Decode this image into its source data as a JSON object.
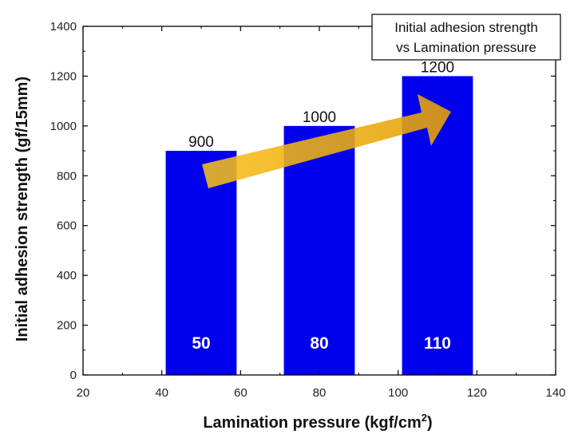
{
  "chart_data": {
    "type": "bar",
    "title": "Initial adhesion strength vs Lamination pressure",
    "title_lines": [
      "Initial adhesion strength",
      "vs Lamination pressure"
    ],
    "xlabel": "Lamination pressure (kgf/cm",
    "xlabel_superscript": "2",
    "xlabel_suffix": ")",
    "ylabel": "Initial adhesion strength (gf/15mm)",
    "x": [
      50,
      80,
      110
    ],
    "values": [
      900,
      1000,
      1200
    ],
    "bar_labels": [
      "900",
      "1000",
      "1200"
    ],
    "category_labels": [
      "50",
      "80",
      "110"
    ],
    "bar_width_units": 18,
    "xlim": [
      20,
      140
    ],
    "ylim": [
      0,
      1400
    ],
    "xticks": [
      20,
      40,
      60,
      80,
      100,
      120,
      140
    ],
    "yticks": [
      0,
      200,
      400,
      600,
      800,
      1000,
      1200,
      1400
    ],
    "bar_color": "#0000ee",
    "arrow_color": "#f5b800",
    "annotation": "arrow indicating increasing trend"
  }
}
